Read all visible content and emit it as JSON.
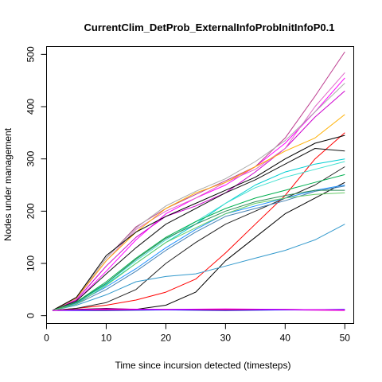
{
  "chart_data": {
    "type": "line",
    "title": "CurrentClim_DetProb_ExternalInfoProbInitInfoP0.1",
    "xlabel": "Time since incursion detected (timesteps)",
    "ylabel": "Nodes under management",
    "xlim": [
      0,
      51.5
    ],
    "ylim": [
      -15,
      515
    ],
    "xticks": [
      0,
      10,
      20,
      30,
      40,
      50
    ],
    "yticks": [
      0,
      100,
      200,
      300,
      400,
      500
    ],
    "grid": false,
    "legend": "none",
    "series": [
      {
        "color": "#FF0000",
        "points": [
          [
            1,
            10
          ],
          [
            5,
            14
          ],
          [
            10,
            20
          ],
          [
            15,
            30
          ],
          [
            20,
            45
          ],
          [
            25,
            70
          ],
          [
            30,
            120
          ],
          [
            35,
            175
          ],
          [
            40,
            230
          ],
          [
            45,
            300
          ],
          [
            50,
            350
          ]
        ]
      },
      {
        "color": "#FF00FF",
        "points": [
          [
            1,
            10
          ],
          [
            5,
            28
          ],
          [
            10,
            85
          ],
          [
            15,
            145
          ],
          [
            20,
            195
          ],
          [
            25,
            225
          ],
          [
            30,
            250
          ],
          [
            35,
            285
          ],
          [
            40,
            330
          ],
          [
            45,
            390
          ],
          [
            50,
            455
          ]
        ]
      },
      {
        "color": "#CD00CD",
        "points": [
          [
            1,
            10
          ],
          [
            5,
            30
          ],
          [
            10,
            95
          ],
          [
            15,
            150
          ],
          [
            20,
            190
          ],
          [
            25,
            210
          ],
          [
            30,
            235
          ],
          [
            35,
            275
          ],
          [
            40,
            320
          ],
          [
            45,
            380
          ],
          [
            50,
            430
          ]
        ]
      },
      {
        "color": "#BC3C8F",
        "points": [
          [
            1,
            10
          ],
          [
            5,
            35
          ],
          [
            10,
            110
          ],
          [
            15,
            170
          ],
          [
            20,
            205
          ],
          [
            25,
            232
          ],
          [
            30,
            258
          ],
          [
            35,
            285
          ],
          [
            40,
            340
          ],
          [
            45,
            420
          ],
          [
            50,
            505
          ]
        ]
      },
      {
        "color": "#E066C8",
        "points": [
          [
            1,
            10
          ],
          [
            5,
            32
          ],
          [
            10,
            105
          ],
          [
            15,
            165
          ],
          [
            20,
            200
          ],
          [
            25,
            225
          ],
          [
            30,
            255
          ],
          [
            35,
            280
          ],
          [
            40,
            320
          ],
          [
            45,
            400
          ],
          [
            50,
            465
          ]
        ]
      },
      {
        "color": "#AAAAAA",
        "points": [
          [
            1,
            10
          ],
          [
            5,
            35
          ],
          [
            10,
            110
          ],
          [
            15,
            168
          ],
          [
            20,
            210
          ],
          [
            25,
            238
          ],
          [
            30,
            262
          ],
          [
            35,
            295
          ],
          [
            40,
            335
          ],
          [
            45,
            390
          ],
          [
            50,
            445
          ]
        ]
      },
      {
        "color": "#FFB000",
        "points": [
          [
            1,
            10
          ],
          [
            5,
            34
          ],
          [
            10,
            105
          ],
          [
            15,
            160
          ],
          [
            20,
            205
          ],
          [
            25,
            235
          ],
          [
            30,
            255
          ],
          [
            35,
            285
          ],
          [
            40,
            315
          ],
          [
            45,
            340
          ],
          [
            50,
            385
          ]
        ]
      },
      {
        "color": "#000000",
        "points": [
          [
            1,
            10
          ],
          [
            5,
            35
          ],
          [
            10,
            115
          ],
          [
            15,
            160
          ],
          [
            20,
            190
          ],
          [
            25,
            215
          ],
          [
            30,
            240
          ],
          [
            35,
            265
          ],
          [
            40,
            300
          ],
          [
            45,
            330
          ],
          [
            50,
            345
          ]
        ]
      },
      {
        "color": "#111111",
        "points": [
          [
            1,
            10
          ],
          [
            5,
            28
          ],
          [
            10,
            80
          ],
          [
            15,
            130
          ],
          [
            20,
            175
          ],
          [
            25,
            205
          ],
          [
            30,
            235
          ],
          [
            35,
            260
          ],
          [
            40,
            290
          ],
          [
            45,
            320
          ],
          [
            50,
            315
          ]
        ]
      },
      {
        "color": "#222222",
        "points": [
          [
            1,
            10
          ],
          [
            5,
            14
          ],
          [
            10,
            25
          ],
          [
            15,
            50
          ],
          [
            20,
            100
          ],
          [
            25,
            140
          ],
          [
            30,
            175
          ],
          [
            35,
            200
          ],
          [
            40,
            225
          ],
          [
            45,
            250
          ],
          [
            50,
            285
          ]
        ]
      },
      {
        "color": "#000000",
        "points": [
          [
            1,
            10
          ],
          [
            5,
            12
          ],
          [
            10,
            14
          ],
          [
            15,
            12
          ],
          [
            20,
            20
          ],
          [
            25,
            45
          ],
          [
            30,
            105
          ],
          [
            35,
            150
          ],
          [
            40,
            195
          ],
          [
            45,
            225
          ],
          [
            50,
            255
          ]
        ]
      },
      {
        "color": "#00CED1",
        "points": [
          [
            1,
            10
          ],
          [
            5,
            25
          ],
          [
            10,
            60
          ],
          [
            15,
            100
          ],
          [
            20,
            140
          ],
          [
            25,
            175
          ],
          [
            30,
            215
          ],
          [
            35,
            250
          ],
          [
            40,
            275
          ],
          [
            45,
            290
          ],
          [
            50,
            300
          ]
        ]
      },
      {
        "color": "#40E0D0",
        "points": [
          [
            1,
            10
          ],
          [
            5,
            26
          ],
          [
            10,
            62
          ],
          [
            15,
            105
          ],
          [
            20,
            145
          ],
          [
            25,
            180
          ],
          [
            30,
            215
          ],
          [
            35,
            245
          ],
          [
            40,
            265
          ],
          [
            45,
            280
          ],
          [
            50,
            295
          ]
        ]
      },
      {
        "color": "#1E90FF",
        "points": [
          [
            1,
            10
          ],
          [
            5,
            24
          ],
          [
            10,
            55
          ],
          [
            15,
            90
          ],
          [
            20,
            130
          ],
          [
            25,
            165
          ],
          [
            30,
            195
          ],
          [
            35,
            210
          ],
          [
            40,
            225
          ],
          [
            45,
            240
          ],
          [
            50,
            250
          ]
        ]
      },
      {
        "color": "#4682B4",
        "points": [
          [
            1,
            10
          ],
          [
            5,
            22
          ],
          [
            10,
            50
          ],
          [
            15,
            85
          ],
          [
            20,
            125
          ],
          [
            25,
            160
          ],
          [
            30,
            190
          ],
          [
            35,
            205
          ],
          [
            40,
            220
          ],
          [
            45,
            238
          ],
          [
            50,
            248
          ]
        ]
      },
      {
        "color": "#3399CC",
        "points": [
          [
            1,
            10
          ],
          [
            5,
            20
          ],
          [
            10,
            40
          ],
          [
            15,
            65
          ],
          [
            20,
            75
          ],
          [
            25,
            80
          ],
          [
            30,
            95
          ],
          [
            35,
            110
          ],
          [
            40,
            125
          ],
          [
            45,
            145
          ],
          [
            50,
            175
          ]
        ]
      },
      {
        "color": "#00B050",
        "points": [
          [
            1,
            10
          ],
          [
            5,
            26
          ],
          [
            10,
            65
          ],
          [
            15,
            110
          ],
          [
            20,
            150
          ],
          [
            25,
            180
          ],
          [
            30,
            205
          ],
          [
            35,
            225
          ],
          [
            40,
            240
          ],
          [
            45,
            255
          ],
          [
            50,
            270
          ]
        ]
      },
      {
        "color": "#2E8B57",
        "points": [
          [
            1,
            10
          ],
          [
            5,
            25
          ],
          [
            10,
            62
          ],
          [
            15,
            108
          ],
          [
            20,
            148
          ],
          [
            25,
            175
          ],
          [
            30,
            200
          ],
          [
            35,
            218
          ],
          [
            40,
            230
          ],
          [
            45,
            240
          ],
          [
            50,
            240
          ]
        ]
      },
      {
        "color": "#66CC66",
        "points": [
          [
            1,
            10
          ],
          [
            5,
            22
          ],
          [
            10,
            58
          ],
          [
            15,
            100
          ],
          [
            20,
            140
          ],
          [
            25,
            168
          ],
          [
            30,
            195
          ],
          [
            35,
            215
          ],
          [
            40,
            225
          ],
          [
            45,
            232
          ],
          [
            50,
            235
          ]
        ]
      },
      {
        "color": "#CD00CD",
        "points": [
          [
            1,
            10
          ],
          [
            10,
            12
          ],
          [
            20,
            11
          ],
          [
            30,
            12
          ],
          [
            40,
            11
          ],
          [
            50,
            10
          ]
        ]
      },
      {
        "color": "#FF0000",
        "points": [
          [
            1,
            10
          ],
          [
            10,
            11
          ],
          [
            20,
            12
          ],
          [
            30,
            11
          ],
          [
            40,
            12
          ],
          [
            50,
            11
          ]
        ]
      },
      {
        "color": "#0000FF",
        "points": [
          [
            1,
            10
          ],
          [
            10,
            10
          ],
          [
            20,
            11
          ],
          [
            30,
            10
          ],
          [
            40,
            11
          ],
          [
            50,
            12
          ]
        ]
      },
      {
        "color": "#FF00FF",
        "points": [
          [
            1,
            10
          ],
          [
            10,
            13
          ],
          [
            20,
            12
          ],
          [
            30,
            13
          ],
          [
            40,
            12
          ],
          [
            50,
            11
          ]
        ]
      }
    ]
  }
}
